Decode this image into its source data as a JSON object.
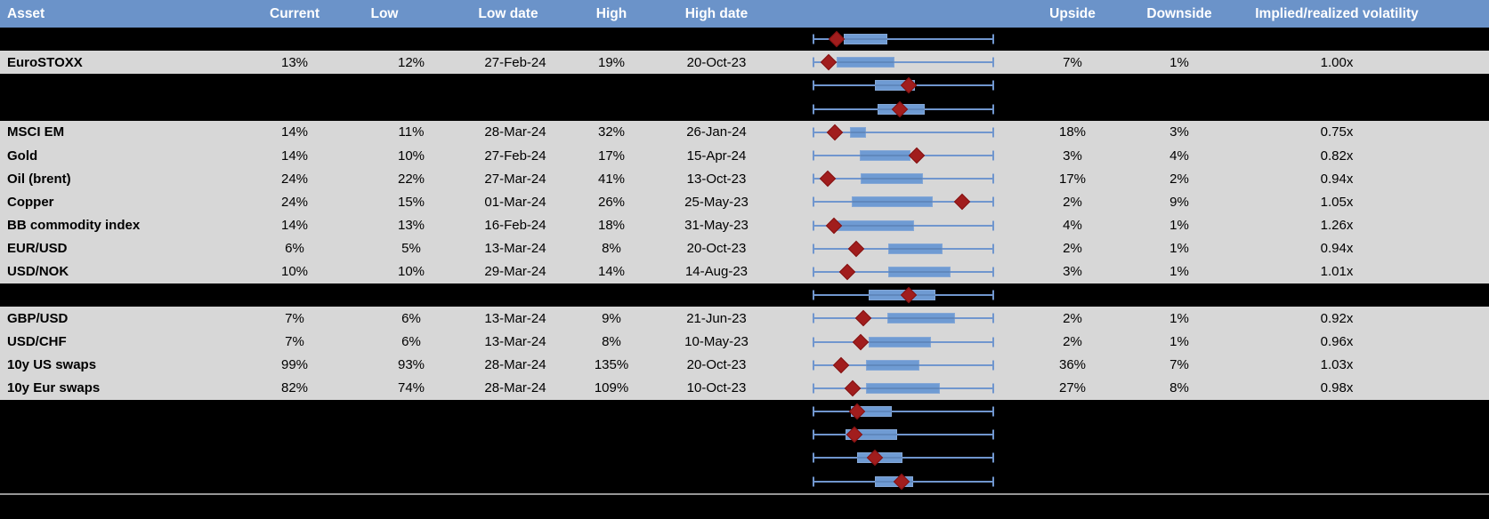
{
  "header": {
    "columns": [
      "Asset",
      "Current",
      "Low",
      "Low date",
      "High",
      "High date",
      "",
      "Upside",
      "Downside",
      "Implied/realized volatility"
    ]
  },
  "colors": {
    "header_bg": "#6b93c9",
    "header_text": "#ffffff",
    "row_bg": "#d7d7d7",
    "hidden_row_bg": "#000000",
    "text": "#000000",
    "box_fill": "#6f9bd3",
    "box_border": "#84a7d6",
    "whisker": "#7096ce",
    "marker": "#a11d1d",
    "divider_line": "#969696"
  },
  "chart_data": {
    "type": "table",
    "embedded_chart": "boxplot",
    "boxplot_semantics": {
      "whisker_min": 0,
      "whisker_max": 1,
      "marker_meaning": "current value position between Low (0) and High (1)",
      "box_meaning": "interquartile range, normalized 0-1 across whisker span"
    },
    "columns": [
      "Asset",
      "Current",
      "Low",
      "Low date",
      "High",
      "High date",
      "Range chart",
      "Upside",
      "Downside",
      "Implied/realized volatility"
    ],
    "rows": [
      {
        "hidden": true,
        "box": [
          0.17,
          0.41
        ],
        "marker": 0.13
      },
      {
        "hidden": false,
        "asset": "EuroSTOXX",
        "current": "13%",
        "low": "12%",
        "low_date": "27-Feb-24",
        "high": "19%",
        "high_date": "20-Oct-23",
        "upside": "7%",
        "downside": "1%",
        "implied_realized": "1.00x",
        "box": [
          0.13,
          0.45
        ],
        "marker": 0.09
      },
      {
        "hidden": true,
        "box": [
          0.345,
          0.565
        ],
        "marker": 0.53
      },
      {
        "hidden": true,
        "box": [
          0.36,
          0.62
        ],
        "marker": 0.48
      },
      {
        "hidden": false,
        "asset": "MSCI EM",
        "current": "14%",
        "low": "11%",
        "low_date": "28-Mar-24",
        "high": "32%",
        "high_date": "26-Jan-24",
        "upside": "18%",
        "downside": "3%",
        "implied_realized": "0.75x",
        "box": [
          0.206,
          0.294
        ],
        "marker": 0.122
      },
      {
        "hidden": false,
        "asset": "Gold",
        "current": "14%",
        "low": "10%",
        "low_date": "27-Feb-24",
        "high": "17%",
        "high_date": "15-Apr-24",
        "upside": "3%",
        "downside": "4%",
        "implied_realized": "0.82x",
        "box": [
          0.26,
          0.539
        ],
        "marker": 0.574
      },
      {
        "hidden": false,
        "asset": "Oil (brent)",
        "current": "24%",
        "low": "22%",
        "low_date": "27-Mar-24",
        "high": "41%",
        "high_date": "13-Oct-23",
        "upside": "17%",
        "downside": "2%",
        "implied_realized": "0.94x",
        "box": [
          0.265,
          0.608
        ],
        "marker": 0.083
      },
      {
        "hidden": false,
        "asset": "Copper",
        "current": "24%",
        "low": "15%",
        "low_date": "01-Mar-24",
        "high": "26%",
        "high_date": "25-May-23",
        "upside": "2%",
        "downside": "9%",
        "implied_realized": "1.05x",
        "box": [
          0.216,
          0.662
        ],
        "marker": 0.824
      },
      {
        "hidden": false,
        "asset": "BB commodity index",
        "current": "14%",
        "low": "13%",
        "low_date": "16-Feb-24",
        "high": "18%",
        "high_date": "31-May-23",
        "upside": "4%",
        "downside": "1%",
        "implied_realized": "1.26x",
        "box": [
          0.132,
          0.559
        ],
        "marker": 0.118
      },
      {
        "hidden": false,
        "asset": "EUR/USD",
        "current": "6%",
        "low": "5%",
        "low_date": "13-Mar-24",
        "high": "8%",
        "high_date": "20-Oct-23",
        "upside": "2%",
        "downside": "1%",
        "implied_realized": "0.94x",
        "box": [
          0.417,
          0.716
        ],
        "marker": 0.24
      },
      {
        "hidden": false,
        "asset": "USD/NOK",
        "current": "10%",
        "low": "10%",
        "low_date": "29-Mar-24",
        "high": "14%",
        "high_date": "14-Aug-23",
        "upside": "3%",
        "downside": "1%",
        "implied_realized": "1.01x",
        "box": [
          0.417,
          0.76
        ],
        "marker": 0.19
      },
      {
        "hidden": true,
        "box": [
          0.31,
          0.676
        ],
        "marker": 0.53
      },
      {
        "hidden": false,
        "asset": "GBP/USD",
        "current": "7%",
        "low": "6%",
        "low_date": "13-Mar-24",
        "high": "9%",
        "high_date": "21-Jun-23",
        "upside": "2%",
        "downside": "1%",
        "implied_realized": "0.92x",
        "box": [
          0.41,
          0.784
        ],
        "marker": 0.28
      },
      {
        "hidden": false,
        "asset": "USD/CHF",
        "current": "7%",
        "low": "6%",
        "low_date": "13-Mar-24",
        "high": "8%",
        "high_date": "10-May-23",
        "upside": "2%",
        "downside": "1%",
        "implied_realized": "0.96x",
        "box": [
          0.31,
          0.65
        ],
        "marker": 0.265
      },
      {
        "hidden": false,
        "asset": "10y US swaps",
        "current": "99%",
        "low": "93%",
        "low_date": "28-Mar-24",
        "high": "135%",
        "high_date": "20-Oct-23",
        "upside": "36%",
        "downside": "7%",
        "implied_realized": "1.03x",
        "box": [
          0.294,
          0.588
        ],
        "marker": 0.157
      },
      {
        "hidden": false,
        "asset": "10y Eur swaps",
        "current": "82%",
        "low": "74%",
        "low_date": "28-Mar-24",
        "high": "109%",
        "high_date": "10-Oct-23",
        "upside": "27%",
        "downside": "8%",
        "implied_realized": "0.98x",
        "box": [
          0.294,
          0.7
        ],
        "marker": 0.22
      },
      {
        "hidden": true,
        "box": [
          0.21,
          0.436
        ],
        "marker": 0.245
      },
      {
        "hidden": true,
        "box": [
          0.18,
          0.466
        ],
        "marker": 0.23
      },
      {
        "hidden": true,
        "box": [
          0.245,
          0.495
        ],
        "marker": 0.343
      },
      {
        "hidden": true,
        "box": [
          0.343,
          0.554
        ],
        "marker": 0.49
      }
    ]
  }
}
